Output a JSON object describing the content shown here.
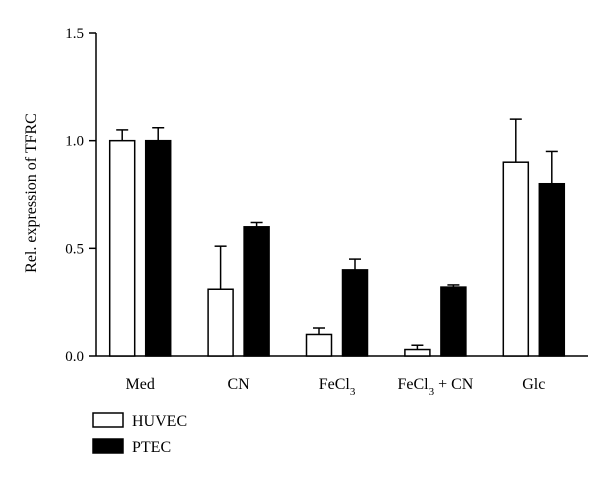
{
  "chart_data": {
    "type": "bar",
    "categories": [
      "Med",
      "CN",
      "FeCl3",
      "FeCl3 + CN",
      "Glc"
    ],
    "category_display": [
      {
        "base": "Med",
        "sub": "",
        "rest": ""
      },
      {
        "base": "CN",
        "sub": "",
        "rest": ""
      },
      {
        "base": "FeCl",
        "sub": "3",
        "rest": ""
      },
      {
        "base": "FeCl",
        "sub": "3",
        "rest": " + CN"
      },
      {
        "base": "Glc",
        "sub": "",
        "rest": ""
      }
    ],
    "series": [
      {
        "name": "HUVEC",
        "color": "#ffffff",
        "values": [
          1.0,
          0.31,
          0.1,
          0.03,
          0.9
        ],
        "errors": [
          0.05,
          0.2,
          0.03,
          0.02,
          0.2
        ]
      },
      {
        "name": "PTEC",
        "color": "#000000",
        "values": [
          1.0,
          0.6,
          0.4,
          0.32,
          0.8
        ],
        "errors": [
          0.06,
          0.02,
          0.05,
          0.01,
          0.15
        ]
      }
    ],
    "ylabel": "Rel. expression of TFRC",
    "xlabel": "",
    "ylim": [
      0,
      1.5
    ],
    "yticks": [
      "0.0",
      "0.5",
      "1.0",
      "1.5"
    ],
    "legend_position": "bottom-left",
    "grid": false
  }
}
